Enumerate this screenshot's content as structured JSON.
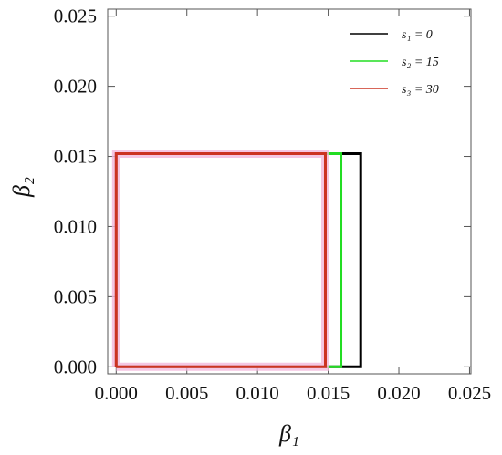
{
  "chart_data": {
    "type": "region",
    "x_label": "β₁",
    "y_label": "β₂",
    "xlim": [
      -0.0006,
      0.0251
    ],
    "ylim": [
      -0.0005,
      0.0255
    ],
    "xticks": [
      {
        "value": 0,
        "label": "0.000"
      },
      {
        "value": 0.005,
        "label": "0.005"
      },
      {
        "value": 0.01,
        "label": "0.010"
      },
      {
        "value": 0.015,
        "label": "0.015"
      },
      {
        "value": 0.02,
        "label": "0.020"
      },
      {
        "value": 0.025,
        "label": "0.025"
      }
    ],
    "yticks": [
      {
        "value": 0,
        "label": "0.000"
      },
      {
        "value": 0.005,
        "label": "0.005"
      },
      {
        "value": 0.01,
        "label": "0.010"
      },
      {
        "value": 0.015,
        "label": "0.015"
      },
      {
        "value": 0.02,
        "label": "0.020"
      },
      {
        "value": 0.025,
        "label": "0.025"
      }
    ],
    "legend": "upper right",
    "series": [
      {
        "name": "s₁ = 0",
        "color": "#000000",
        "x": [
          0,
          0.0173,
          0.0173,
          0,
          0
        ],
        "values": [
          0,
          0,
          0.0152,
          0.0152,
          0
        ]
      },
      {
        "name": "s₂ = 15",
        "color": "#22dd22",
        "x": [
          0,
          0.0159,
          0.0159,
          0,
          0
        ],
        "values": [
          0,
          0,
          0.0152,
          0.0152,
          0
        ]
      },
      {
        "name": "s₃ = 30",
        "color": "#cc3322",
        "x": [
          0,
          0.0148,
          0.0148,
          0,
          0
        ],
        "values": [
          0,
          0,
          0.0152,
          0.0152,
          0
        ]
      }
    ]
  }
}
